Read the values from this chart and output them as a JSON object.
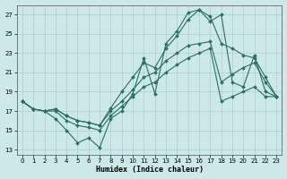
{
  "xlabel": "Humidex (Indice chaleur)",
  "xlim": [
    -0.5,
    23.5
  ],
  "ylim": [
    12.5,
    28.0
  ],
  "yticks": [
    13,
    15,
    17,
    19,
    21,
    23,
    25,
    27
  ],
  "xticks": [
    0,
    1,
    2,
    3,
    4,
    5,
    6,
    7,
    8,
    9,
    10,
    11,
    12,
    13,
    14,
    15,
    16,
    17,
    18,
    19,
    20,
    21,
    22,
    23
  ],
  "bg_color": "#cce8e8",
  "grid_color": "#aacfcf",
  "line_color": "#2a6e65",
  "x": [
    0,
    1,
    2,
    3,
    4,
    5,
    6,
    7,
    8,
    9,
    10,
    11,
    12,
    13,
    14,
    15,
    16,
    17,
    18,
    19,
    20,
    21,
    22,
    23
  ],
  "curve_jagged": [
    18.0,
    17.2,
    17.0,
    16.2,
    15.0,
    13.7,
    14.2,
    13.2,
    16.2,
    17.0,
    18.8,
    22.5,
    18.8,
    24.0,
    25.3,
    27.2,
    27.5,
    26.3,
    27.0,
    20.0,
    19.5,
    22.8,
    19.0,
    18.5
  ],
  "curve_diag_lower": [
    18.0,
    17.2,
    17.0,
    17.0,
    16.0,
    15.5,
    15.3,
    15.0,
    16.5,
    17.5,
    18.5,
    19.5,
    20.0,
    21.0,
    21.8,
    22.5,
    23.0,
    23.5,
    18.0,
    18.5,
    19.0,
    19.5,
    18.5,
    18.5
  ],
  "curve_diag_upper": [
    18.0,
    17.2,
    17.0,
    17.2,
    16.5,
    16.0,
    15.8,
    15.5,
    17.0,
    18.0,
    19.2,
    20.5,
    21.0,
    22.2,
    23.0,
    23.8,
    24.0,
    24.2,
    20.0,
    20.8,
    21.5,
    22.0,
    20.0,
    18.5
  ],
  "curve_peak": [
    18.0,
    17.2,
    17.0,
    17.2,
    16.5,
    16.0,
    15.8,
    15.5,
    17.3,
    19.0,
    20.5,
    22.0,
    21.5,
    23.5,
    24.8,
    26.5,
    27.5,
    26.8,
    24.0,
    23.5,
    22.8,
    22.5,
    20.5,
    18.5
  ]
}
